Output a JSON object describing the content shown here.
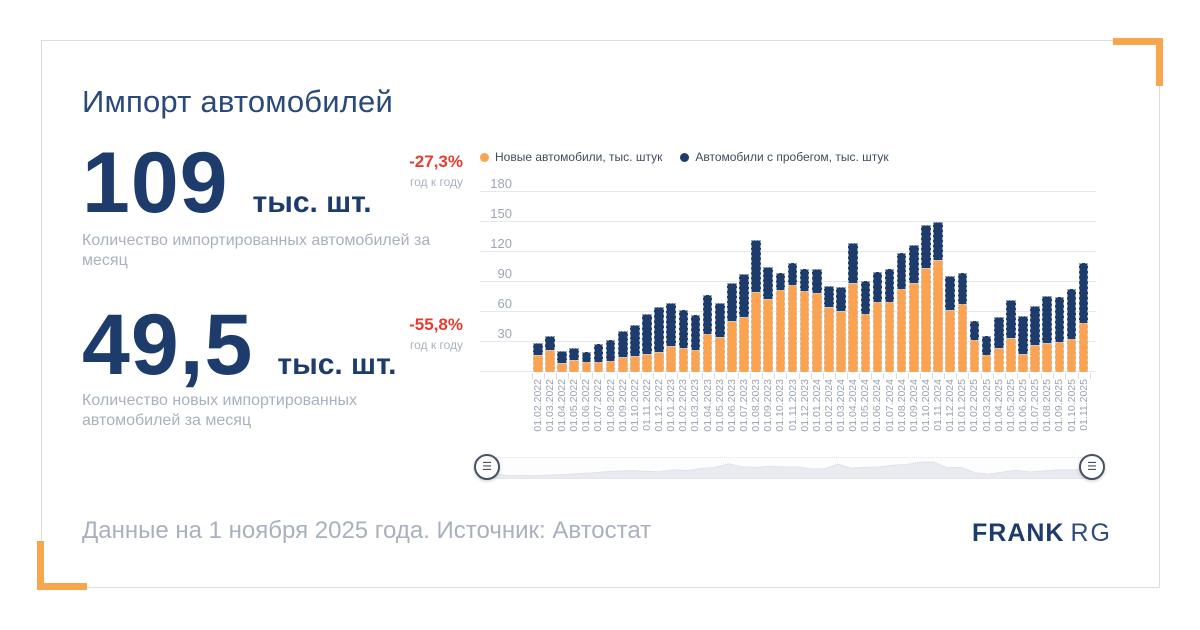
{
  "card": {
    "title": "Импорт автомобилей",
    "stats": [
      {
        "value": "109",
        "unit": "тыс. шт.",
        "delta": "-27,3%",
        "delta_caption": "год к году",
        "description": "Количество импортированных автомобилей за месяц"
      },
      {
        "value": "49,5",
        "unit": "тыс. шт.",
        "delta": "-55,8%",
        "delta_caption": "год к году",
        "description": "Количество новых импортированных автомобилей за месяц"
      }
    ],
    "footer": {
      "note": "Данные на 1 ноября 2025 года. Источник: Автостат",
      "brand_primary": "FRANK",
      "brand_secondary": "RG"
    }
  },
  "colors": {
    "navy": "#1D3C6C",
    "orange": "#FBA351",
    "accent_bracket": "#F9A54E",
    "negative_red": "#E63C2D",
    "muted_text": "#A9B1BE",
    "axis_text": "#9AA3B4",
    "gridline": "#E5E8F0"
  },
  "chart_data": {
    "type": "bar",
    "stacked": true,
    "title": "Импорт автомобилей",
    "xlabel": "",
    "ylabel": "",
    "ylim": [
      0,
      180
    ],
    "yticks": [
      30,
      60,
      90,
      120,
      150,
      180
    ],
    "grid": true,
    "legend_position": "top",
    "legend": [
      {
        "label": "Новые автомобили, тыс. штук",
        "color": "#FBA351"
      },
      {
        "label": "Автомобили с пробегом, тыс. штук",
        "color": "#1D3C6C"
      }
    ],
    "categories": [
      "01.02.2022",
      "01.03.2022",
      "01.04.2022",
      "01.05.2022",
      "01.06.2022",
      "01.07.2022",
      "01.08.2022",
      "01.09.2022",
      "01.10.2022",
      "01.11.2022",
      "01.12.2022",
      "01.01.2023",
      "01.02.2023",
      "01.03.2023",
      "01.04.2023",
      "01.05.2023",
      "01.06.2023",
      "01.07.2023",
      "01.08.2023",
      "01.09.2023",
      "01.10.2023",
      "01.11.2023",
      "01.12.2023",
      "01.01.2024",
      "01.02.2024",
      "01.03.2024",
      "01.04.2024",
      "01.05.2024",
      "01.06.2024",
      "01.07.2024",
      "01.08.2024",
      "01.09.2024",
      "01.10.2024",
      "01.11.2024",
      "01.12.2024",
      "01.01.2025",
      "01.02.2025",
      "01.03.2025",
      "01.04.2025",
      "01.05.2025",
      "01.06.2025",
      "01.07.2025",
      "01.08.2025",
      "01.09.2025",
      "01.10.2025",
      "01.11.2025"
    ],
    "series": [
      {
        "name": "Новые автомобили, тыс. штук",
        "values": [
          17,
          22,
          9,
          12,
          10,
          10,
          11,
          15,
          16,
          18,
          20,
          26,
          24,
          22,
          38,
          35,
          51,
          55,
          80,
          73,
          82,
          87,
          81,
          79,
          65,
          61,
          89,
          58,
          70,
          70,
          83,
          89,
          104,
          112,
          62,
          68,
          32,
          17,
          24,
          34,
          18,
          27,
          29,
          30,
          33,
          49.5
        ]
      },
      {
        "name": "Автомобили с пробегом, тыс. штук",
        "values": [
          12,
          14,
          12,
          12,
          10,
          18,
          21,
          26,
          31,
          40,
          45,
          43,
          38,
          35,
          39,
          34,
          38,
          43,
          52,
          32,
          17,
          22,
          22,
          24,
          21,
          24,
          40,
          33,
          30,
          33,
          36,
          38,
          43,
          38,
          34,
          31,
          19,
          19,
          31,
          38,
          38,
          39,
          47,
          45,
          50,
          59.5
        ]
      }
    ]
  }
}
